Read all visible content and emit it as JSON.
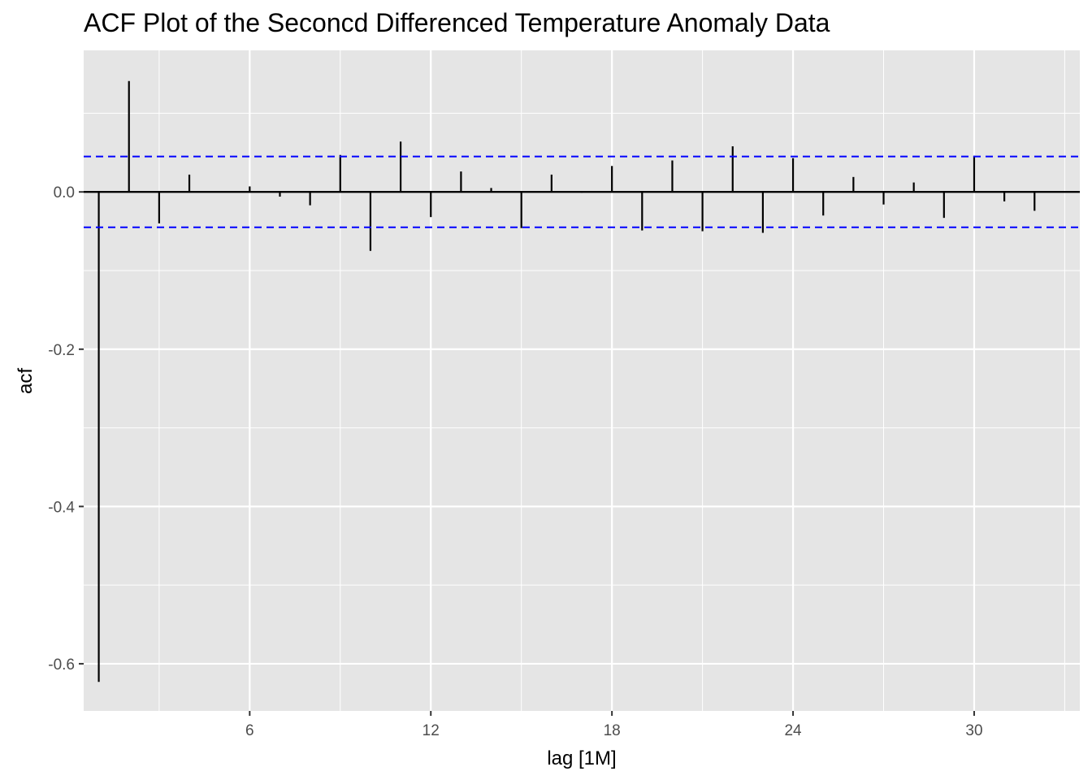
{
  "chart_data": {
    "type": "bar",
    "title": "ACF Plot of the Seconcd Differenced Temperature Anomaly Data",
    "xlabel": "lag [1M]",
    "ylabel": "acf",
    "xlim": [
      0.5,
      33.5
    ],
    "ylim": [
      -0.66,
      0.18
    ],
    "x_ticks": [
      6,
      12,
      18,
      24,
      30
    ],
    "x_tick_labels": [
      "6",
      "12",
      "18",
      "24",
      "30"
    ],
    "y_ticks": [
      0.0,
      -0.2,
      -0.4,
      -0.6
    ],
    "y_tick_labels": [
      "0.0",
      "-0.2",
      "-0.4",
      "-0.6"
    ],
    "grid": true,
    "confidence_bound": 0.045,
    "x": [
      1,
      2,
      3,
      4,
      5,
      6,
      7,
      8,
      9,
      10,
      11,
      12,
      13,
      14,
      15,
      16,
      17,
      18,
      19,
      20,
      21,
      22,
      23,
      24,
      25,
      26,
      27,
      28,
      29,
      30,
      31,
      32
    ],
    "values": [
      -0.623,
      0.141,
      -0.04,
      0.022,
      0.0,
      0.007,
      -0.006,
      -0.017,
      0.047,
      -0.075,
      0.064,
      -0.032,
      0.026,
      0.005,
      -0.046,
      0.022,
      -0.001,
      0.033,
      -0.049,
      0.04,
      -0.05,
      0.058,
      -0.052,
      0.043,
      -0.03,
      0.019,
      -0.016,
      0.012,
      -0.033,
      0.046,
      -0.012,
      -0.024
    ],
    "colors": {
      "panel": "#e5e5e5",
      "grid": "#ffffff",
      "bars": "#000000",
      "zero_line": "#000000",
      "bounds": "#0000ff",
      "tick_text": "#4d4d4d"
    }
  }
}
